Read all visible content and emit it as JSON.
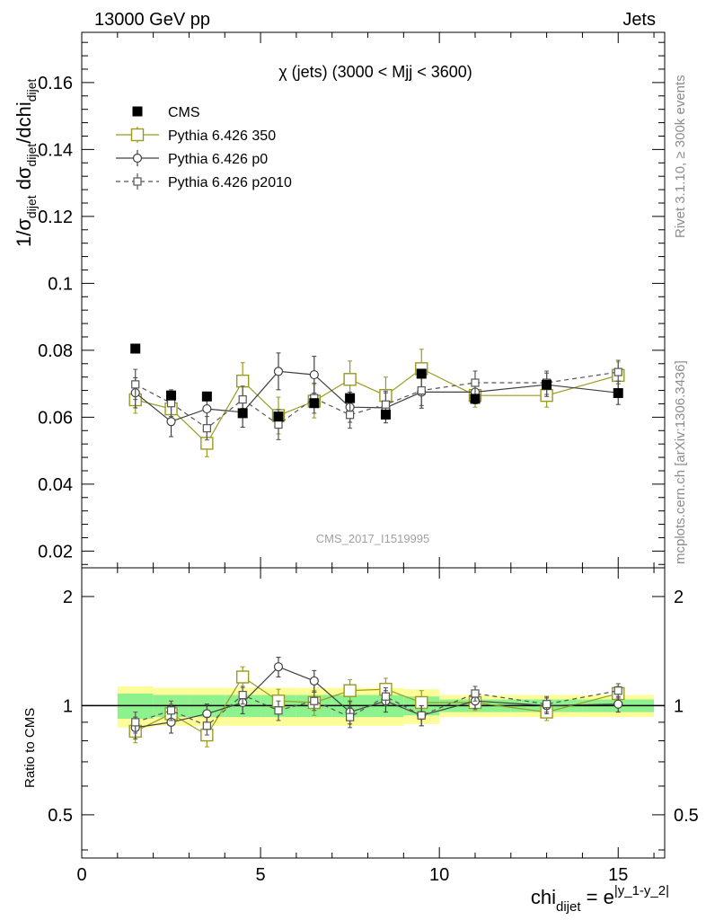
{
  "header": {
    "energy_label": "13000 GeV pp",
    "category_label": "Jets"
  },
  "side_text": {
    "rivet": "Rivet 3.1.10, ≥ 300k events",
    "mcplots": "mcplots.cern.ch [arXiv:1306.3436]"
  },
  "colors": {
    "cms": "#000000",
    "p350": "#9a9a1e",
    "p0": "#404040",
    "p2010": "#555555",
    "band_inner": "#8df28d",
    "band_outer": "#fcfc99",
    "watermark": "#a0a0a0"
  },
  "chart_data": [
    {
      "type": "scatter",
      "title": "χ (jets) (3000 < Mjj < 3600)",
      "watermark": "CMS_2017_I1519995",
      "ylabel": {
        "p1": "1/σ",
        "s1": "dijet",
        "p2": " dσ",
        "s2": "dijet",
        "p3": "/dchi",
        "s3": "dijet"
      },
      "xlim": [
        0,
        16.3
      ],
      "ylim": [
        0.015,
        0.175
      ],
      "yticks": [
        0.02,
        0.04,
        0.06,
        0.08,
        0.1,
        0.12,
        0.14,
        0.16
      ],
      "ytick_labels": [
        "0.02",
        "0.04",
        "0.06",
        "0.08",
        "0.1",
        "0.12",
        "0.14",
        "0.16"
      ],
      "legend_position": "top-left",
      "series": [
        {
          "name": "CMS",
          "key": "cms",
          "marker": "filled-square",
          "line": "none",
          "x": [
            1.5,
            2.5,
            3.5,
            4.5,
            5.5,
            6.5,
            7.5,
            8.5,
            9.5,
            11,
            13,
            15
          ],
          "y": [
            0.0805,
            0.0665,
            0.0662,
            0.0612,
            0.0602,
            0.0642,
            0.0657,
            0.0608,
            0.073,
            0.0655,
            0.0697,
            0.0672
          ],
          "err": [
            0.0013,
            0.0012,
            0.0012,
            0.0012,
            0.0012,
            0.0012,
            0.0012,
            0.0012,
            0.0012,
            0.0008,
            0.0008,
            0.0008
          ]
        },
        {
          "name": "Pythia 6.426 350",
          "key": "p350",
          "marker": "open-square-large",
          "line": "solid",
          "x": [
            1.5,
            2.5,
            3.5,
            4.5,
            5.5,
            6.5,
            7.5,
            8.5,
            9.5,
            11,
            13,
            15
          ],
          "y": [
            0.0652,
            0.0625,
            0.0522,
            0.0708,
            0.0605,
            0.0648,
            0.0713,
            0.0665,
            0.0745,
            0.0665,
            0.0665,
            0.0725
          ],
          "err": [
            0.004,
            0.004,
            0.004,
            0.0055,
            0.0055,
            0.005,
            0.0055,
            0.0055,
            0.0058,
            0.0035,
            0.0035,
            0.004
          ]
        },
        {
          "name": "Pythia 6.426 p0",
          "key": "p0",
          "marker": "open-circle",
          "line": "solid",
          "x": [
            1.5,
            2.5,
            3.5,
            4.5,
            5.5,
            6.5,
            7.5,
            8.5,
            9.5,
            11,
            13,
            15
          ],
          "y": [
            0.0673,
            0.0587,
            0.0625,
            0.0615,
            0.0737,
            0.0727,
            0.063,
            0.0628,
            0.0675,
            0.0675,
            0.0697,
            0.0673
          ],
          "err": [
            0.0045,
            0.0045,
            0.005,
            0.0045,
            0.0055,
            0.0055,
            0.0045,
            0.0045,
            0.0048,
            0.0035,
            0.0035,
            0.0035
          ]
        },
        {
          "name": "Pythia 6.426 p2010",
          "key": "p2010",
          "marker": "open-square-small",
          "line": "dashed",
          "x": [
            1.5,
            2.5,
            3.5,
            4.5,
            5.5,
            6.5,
            7.5,
            8.5,
            9.5,
            11,
            13,
            15
          ],
          "y": [
            0.0698,
            0.0642,
            0.0567,
            0.0653,
            0.0578,
            0.0657,
            0.0607,
            0.0638,
            0.068,
            0.0703,
            0.0703,
            0.0735
          ],
          "err": [
            0.0045,
            0.004,
            0.0035,
            0.004,
            0.0045,
            0.0045,
            0.004,
            0.004,
            0.0045,
            0.0035,
            0.0035,
            0.0035
          ]
        }
      ]
    },
    {
      "type": "scatter",
      "ylabel": "Ratio to CMS",
      "xlabel": {
        "main": "chi",
        "sub": "dijet",
        "eq": " = e",
        "sup": "|y_1-y_2|"
      },
      "xlim": [
        0,
        16.3
      ],
      "yscale": "log",
      "ylim": [
        0.38,
        2.4
      ],
      "yticks": [
        0.5,
        1,
        2
      ],
      "ytick_labels": [
        "0.5",
        "1",
        "2"
      ],
      "xticks": [
        0,
        5,
        10,
        15
      ],
      "xtick_labels": [
        "0",
        "5",
        "10",
        "15"
      ],
      "bands": {
        "bin_edges": [
          1,
          2,
          3,
          4,
          5,
          6,
          7,
          8,
          9,
          10,
          12,
          14,
          16
        ],
        "inner": [
          0.08,
          0.07,
          0.07,
          0.07,
          0.07,
          0.07,
          0.07,
          0.07,
          0.06,
          0.04,
          0.04,
          0.04
        ],
        "outer": [
          0.13,
          0.12,
          0.12,
          0.12,
          0.12,
          0.12,
          0.12,
          0.12,
          0.11,
          0.07,
          0.07,
          0.07
        ]
      },
      "series": [
        {
          "name": "Pythia 6.426 350",
          "key": "p350",
          "marker": "open-square-large",
          "line": "solid",
          "x": [
            1.5,
            2.5,
            3.5,
            4.5,
            5.5,
            6.5,
            7.5,
            8.5,
            9.5,
            11,
            13,
            15
          ],
          "y": [
            0.85,
            0.95,
            0.83,
            1.2,
            1.03,
            1.02,
            1.1,
            1.11,
            1.02,
            1.02,
            0.96,
            1.08
          ],
          "err": [
            0.06,
            0.06,
            0.06,
            0.08,
            0.08,
            0.08,
            0.08,
            0.08,
            0.08,
            0.05,
            0.05,
            0.05
          ]
        },
        {
          "name": "Pythia 6.426 p0",
          "key": "p0",
          "marker": "open-circle",
          "line": "solid",
          "x": [
            1.5,
            2.5,
            3.5,
            4.5,
            5.5,
            6.5,
            7.5,
            8.5,
            9.5,
            11,
            13,
            15
          ],
          "y": [
            0.87,
            0.9,
            0.95,
            1.02,
            1.28,
            1.17,
            0.96,
            1.03,
            0.94,
            1.03,
            1.0,
            1.01
          ],
          "err": [
            0.06,
            0.06,
            0.06,
            0.07,
            0.08,
            0.08,
            0.07,
            0.07,
            0.06,
            0.05,
            0.05,
            0.05
          ]
        },
        {
          "name": "Pythia 6.426 p2010",
          "key": "p2010",
          "marker": "open-square-small",
          "line": "dashed",
          "x": [
            1.5,
            2.5,
            3.5,
            4.5,
            5.5,
            6.5,
            7.5,
            8.5,
            9.5,
            11,
            13,
            15
          ],
          "y": [
            0.9,
            0.97,
            0.88,
            1.07,
            0.97,
            1.03,
            0.93,
            1.06,
            0.94,
            1.08,
            1.01,
            1.1
          ],
          "err": [
            0.06,
            0.06,
            0.05,
            0.06,
            0.06,
            0.06,
            0.06,
            0.06,
            0.06,
            0.05,
            0.05,
            0.05
          ]
        }
      ]
    }
  ]
}
